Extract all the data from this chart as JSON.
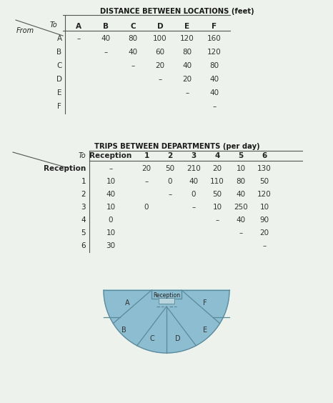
{
  "bg_color": "#edf2ec",
  "title1": "DISTANCE BETWEEN LOCATIONS (feet)",
  "dist_cols": [
    "A",
    "B",
    "C",
    "D",
    "E",
    "F"
  ],
  "dist_rows": [
    "A",
    "B",
    "C",
    "D",
    "E",
    "F"
  ],
  "dist_data": [
    [
      "–",
      "40",
      "80",
      "100",
      "120",
      "160"
    ],
    [
      "",
      "–",
      "40",
      "60",
      "80",
      "120"
    ],
    [
      "",
      "",
      "–",
      "20",
      "40",
      "80"
    ],
    [
      "",
      "",
      "",
      "–",
      "20",
      "40"
    ],
    [
      "",
      "",
      "",
      "",
      "–",
      "40"
    ],
    [
      "",
      "",
      "",
      "",
      "",
      "–"
    ]
  ],
  "title2": "TRIPS BETWEEN DEPARTMENTS (per day)",
  "trips_cols": [
    "Reception",
    "1",
    "2",
    "3",
    "4",
    "5",
    "6"
  ],
  "trips_rows": [
    "Reception",
    "1",
    "2",
    "3",
    "4",
    "5",
    "6"
  ],
  "trips_data": [
    [
      "–",
      "20",
      "50",
      "210",
      "20",
      "10",
      "130"
    ],
    [
      "10",
      "–",
      "0",
      "40",
      "110",
      "80",
      "50"
    ],
    [
      "40",
      "",
      "–",
      "0",
      "50",
      "40",
      "120"
    ],
    [
      "10",
      "0",
      "",
      "–",
      "10",
      "250",
      "10"
    ],
    [
      "0",
      "",
      "",
      "",
      "–",
      "40",
      "90"
    ],
    [
      "10",
      "",
      "",
      "",
      "",
      "–",
      "20"
    ],
    [
      "30",
      "",
      "",
      "",
      "",
      "",
      "–"
    ]
  ],
  "fill_color": "#8dbdd0",
  "edge_color": "#5a8a9a",
  "reception_label": "Reception",
  "layout_labels": [
    "A",
    "B",
    "C",
    "D",
    "E",
    "F"
  ]
}
